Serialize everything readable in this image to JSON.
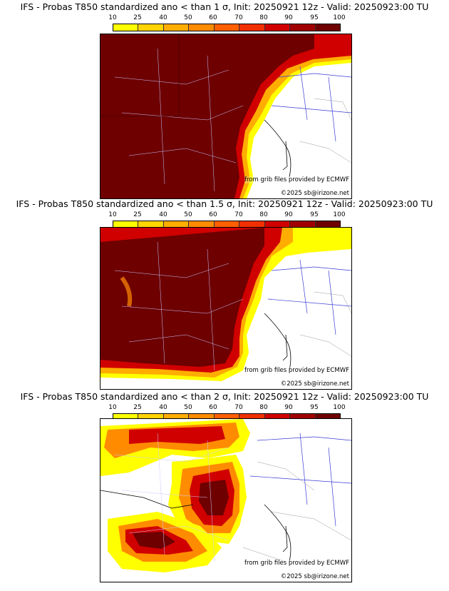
{
  "legend": {
    "ticks": [
      "10",
      "25",
      "40",
      "50",
      "60",
      "70",
      "80",
      "90",
      "95",
      "100"
    ],
    "colors": [
      "#ffff00",
      "#ffd400",
      "#ffad00",
      "#ff8c00",
      "#ff5f00",
      "#f03000",
      "#d00000",
      "#a00000",
      "#6e0000"
    ]
  },
  "panels": [
    {
      "title": "IFS - Probas T850  standardized ano < than 1 σ, Init: 20250921 12z - Valid: 20250923:00 TU",
      "source": "from grib files provided by ECMWF",
      "copyright": "©2025 sb@irizone.net"
    },
    {
      "title": "IFS - Probas T850  standardized ano < than 1.5 σ, Init: 20250921 12z - Valid: 20250923:00 TU",
      "source": "from grib files provided by ECMWF",
      "copyright": "©2025 sb@irizone.net"
    },
    {
      "title": "IFS - Probas T850  standardized ano < than 2 σ, Init: 20250921 12z - Valid: 20250923:00 TU",
      "source": "from grib files provided by ECMWF",
      "copyright": "©2025 sb@irizone.net"
    }
  ]
}
